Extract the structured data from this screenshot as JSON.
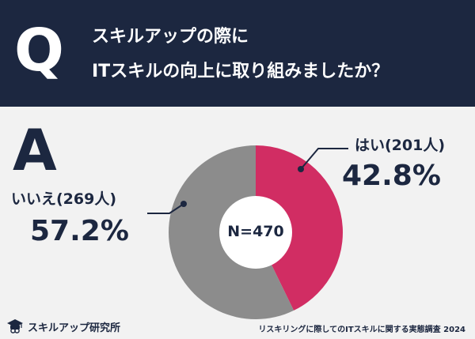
{
  "question": {
    "badge": "Q",
    "line1": "スキルアップの際に",
    "line2": "ITスキルの向上に取り組みましたか？"
  },
  "answer": {
    "badge": "A"
  },
  "chart_data": {
    "type": "pie",
    "style": "donut",
    "total_label": "N=470",
    "slices": [
      {
        "label": "はい(201人)",
        "count": 201,
        "percent": 42.8,
        "percent_label": "42.8%",
        "color": "#d12d63"
      },
      {
        "label": "いいえ(269人)",
        "count": 269,
        "percent": 57.2,
        "percent_label": "57.2%",
        "color": "#8c8c8c"
      }
    ]
  },
  "footer": {
    "brand": "スキルアップ研究所",
    "brand_icon": "graduation-cap-icon",
    "source": "リスキリングに際してのITスキルに関する実態調査 2024"
  },
  "colors": {
    "navy": "#1c2740",
    "background": "#f2f2f2",
    "yes": "#d12d63",
    "no": "#8c8c8c"
  }
}
